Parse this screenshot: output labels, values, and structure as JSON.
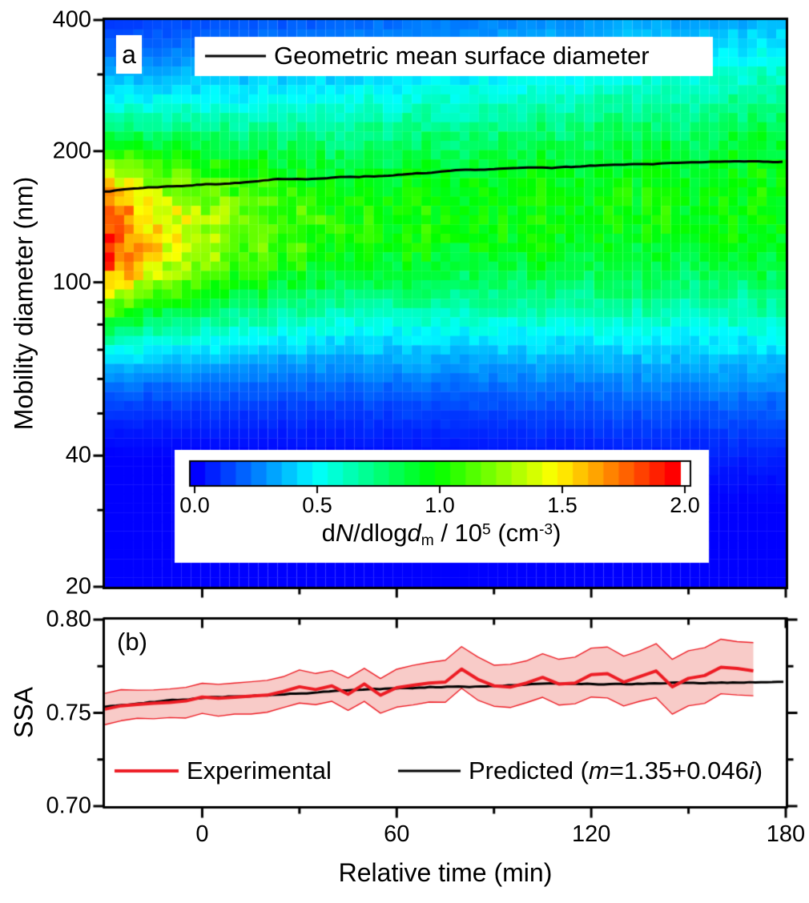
{
  "figure": {
    "panel_a": {
      "label": "a",
      "legend_label": "Geometric mean surface diameter",
      "y_axis_title": "Mobility diameter (nm)",
      "y_tick_labels": [
        "400",
        "200",
        "100",
        "40",
        "20"
      ],
      "colorbar": {
        "tick_labels": [
          "0.0",
          "0.5",
          "1.0",
          "1.5",
          "2.0"
        ],
        "title_segments": [
          {
            "t": "d"
          },
          {
            "t": "N",
            "i": true
          },
          {
            "t": "/dlog"
          },
          {
            "t": "d",
            "i": true
          },
          {
            "t": "m",
            "sub": true
          },
          {
            "t": " / 10"
          },
          {
            "t": "5",
            "sup": true
          },
          {
            "t": " (cm"
          },
          {
            "t": "-3",
            "sup": true
          },
          {
            "t": ")"
          }
        ]
      }
    },
    "panel_b": {
      "label": "(b)",
      "y_axis_title": "SSA",
      "y_tick_labels": [
        "0.80",
        "0.75",
        "0.70"
      ],
      "legend": [
        {
          "label": "Experimental",
          "color": "#ed1c24"
        },
        {
          "label_segments": [
            {
              "t": "Predicted ("
            },
            {
              "t": "m",
              "i": true
            },
            {
              "t": "=1.35+0.046"
            },
            {
              "t": "i",
              "i": true
            },
            {
              "t": ")"
            }
          ],
          "color": "#000000"
        }
      ]
    },
    "x_axis": {
      "title": "Relative time (min)",
      "tick_labels": [
        "0",
        "60",
        "120",
        "180"
      ]
    }
  },
  "colors": {
    "experimental_line": "#ed1c24",
    "band_fill": "#f8cbc8",
    "band_edge": "#ed1c24",
    "predicted_line": "#000000",
    "mean_diameter_line": "#000000",
    "axis": "#000000"
  },
  "chart_data": [
    {
      "type": "heatmap",
      "title": "",
      "x": {
        "label": "Relative time (min)",
        "range": [
          -30,
          180
        ],
        "major_ticks": [
          0,
          60,
          120,
          180
        ],
        "minor_ticks": [
          30,
          90,
          150
        ]
      },
      "y": {
        "label": "Mobility diameter (nm)",
        "scale": "log",
        "range": [
          20,
          400
        ],
        "major_ticks": [
          400,
          200,
          100,
          40,
          20
        ],
        "minor_ticks": [
          300,
          90,
          80,
          70,
          60,
          50,
          30
        ]
      },
      "z": {
        "label": "dN/dlogdm / 10^5 (cm-3)",
        "range": [
          0,
          2
        ],
        "ticks": [
          0.0,
          0.5,
          1.0,
          1.5,
          2.0
        ],
        "colormap": "blue-cyan-green-yellow-orange-red",
        "over_color": "#ffffff"
      },
      "grid": {
        "ncols": 71,
        "nrows": 61,
        "noise_mult": 0.09,
        "noise_col": 0.05,
        "value_offset": -0.06,
        "value_gain": 1.03
      },
      "model": {
        "main_mode_nm": [
          122,
          134
        ],
        "main_sigma_up_dec": [
          0.15,
          0.22
        ],
        "main_sigma_dn_dec": [
          0.14,
          0.2
        ],
        "main_amp": {
          "base": 0.32,
          "extra": 0.98,
          "tau_min": 30
        },
        "bg_amp": 0.72,
        "bg_mode_nm": [
          147,
          170
        ],
        "bg_sigma_dec": [
          0.25,
          0.33
        ]
      },
      "mean_surface_diameter_line": {
        "name": "Geometric mean surface diameter",
        "x": [
          -30,
          -20,
          -10,
          0,
          10,
          20,
          30,
          40,
          50,
          60,
          70,
          80,
          90,
          100,
          110,
          120,
          130,
          140,
          150,
          160,
          170,
          180
        ],
        "y_nm": [
          162.0,
          164.8,
          166.8,
          168.6,
          170.2,
          171.8,
          173.2,
          174.6,
          176.0,
          177.3,
          178.5,
          179.7,
          180.8,
          181.9,
          183.0,
          184.0,
          185.0,
          186.0,
          187.0,
          188.0,
          189.0,
          190.2
        ],
        "jitter_nm": 0.9
      }
    },
    {
      "type": "line",
      "title": "",
      "x": {
        "label": "Relative time (min)",
        "range": [
          -30,
          180
        ],
        "major_ticks": [
          0,
          60,
          120,
          180
        ],
        "minor_ticks": [
          30,
          90,
          150
        ]
      },
      "y": {
        "label": "SSA",
        "range": [
          0.7,
          0.8
        ],
        "major_ticks": [
          0.8,
          0.75,
          0.7
        ],
        "minor_ticks": [
          0.775,
          0.725
        ]
      },
      "series": [
        {
          "name": "Experimental",
          "x": [
            -30,
            -25,
            -20,
            -15,
            -10,
            -5,
            0,
            5,
            10,
            15,
            20,
            25,
            30,
            35,
            40,
            45,
            50,
            55,
            60,
            65,
            70,
            75,
            80,
            85,
            90,
            95,
            100,
            105,
            110,
            115,
            120,
            125,
            130,
            135,
            140,
            145,
            150,
            155,
            160,
            165,
            170
          ],
          "y": [
            0.752,
            0.7538,
            0.7545,
            0.7552,
            0.7556,
            0.7564,
            0.7585,
            0.7578,
            0.7584,
            0.759,
            0.7595,
            0.7615,
            0.764,
            0.7625,
            0.7645,
            0.76,
            0.7655,
            0.7595,
            0.7635,
            0.7648,
            0.766,
            0.7665,
            0.7735,
            0.768,
            0.7645,
            0.7638,
            0.766,
            0.769,
            0.7655,
            0.766,
            0.7705,
            0.771,
            0.7665,
            0.7695,
            0.7725,
            0.764,
            0.7685,
            0.77,
            0.7745,
            0.7738,
            0.7725
          ],
          "band_half_width": [
            0.009,
            0.0091,
            0.0092,
            0.0093,
            0.0094,
            0.0095,
            0.0096,
            0.0097,
            0.0098,
            0.0099,
            0.01,
            0.0101,
            0.0102,
            0.0103,
            0.0104,
            0.0105,
            0.0106,
            0.0107,
            0.0108,
            0.0109,
            0.011,
            0.0111,
            0.0112,
            0.0113,
            0.0114,
            0.0115,
            0.0116,
            0.0117,
            0.0118,
            0.0119,
            0.012,
            0.0121,
            0.0122,
            0.0123,
            0.0124,
            0.0125,
            0.0126,
            0.0127,
            0.0128,
            0.0129,
            0.013
          ],
          "band_jitter": 0.0022
        },
        {
          "name": "Predicted (m=1.35+0.046i)",
          "x": [
            -30,
            -20,
            -10,
            0,
            10,
            20,
            30,
            40,
            50,
            60,
            70,
            80,
            90,
            100,
            110,
            120,
            130,
            140,
            150,
            160,
            170,
            180
          ],
          "y": [
            0.7531,
            0.7549,
            0.7563,
            0.7576,
            0.7587,
            0.7597,
            0.7606,
            0.7614,
            0.7622,
            0.7628,
            0.7634,
            0.764,
            0.7645,
            0.7649,
            0.7653,
            0.7656,
            0.7659,
            0.7661,
            0.7663,
            0.7666,
            0.7669,
            0.7672
          ],
          "jitter": 0.0006
        }
      ]
    }
  ]
}
